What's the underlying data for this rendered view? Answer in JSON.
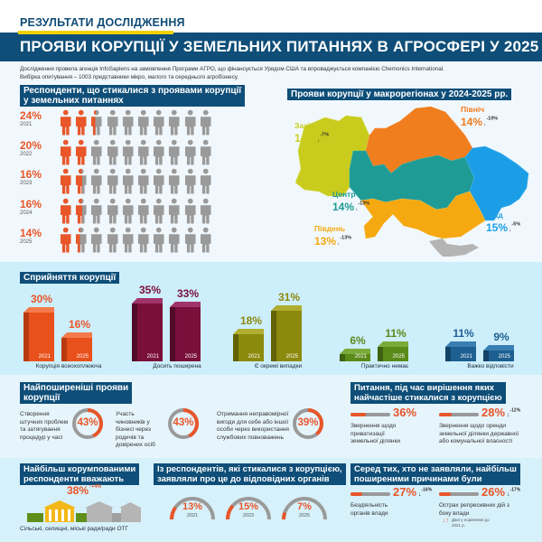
{
  "header": {
    "kicker": "РЕЗУЛЬТАТИ ДОСЛІДЖЕННЯ",
    "title": "ПРОЯВИ КОРУПЦІЇ У ЗЕМЕЛЬНИХ ПИТАННЯХ В АГРОСФЕРІ У 2025 Р.",
    "intro_line1": "Дослідження провела агенція InfoSapiens на замовлення Програми АГРО, що фінансується Урядом США та впроваджується компанією Chemonics International.",
    "intro_line2": "Вибірка опитування – 1003 представники мікро, малого та середнього агробізнесу."
  },
  "colors": {
    "brand_navy": "#0e4e78",
    "accent_yellow": "#f3d100",
    "orange": "#e8562a",
    "maroon": "#7a0f3c",
    "olive": "#8c8a0c",
    "green": "#5a8a1a",
    "blue": "#1d5f91",
    "grey": "#9a9a9a"
  },
  "respondents": {
    "title_line1": "Респонденти, що стикалися з проявами корупції",
    "title_line2": "у земельних питаннях",
    "rows": [
      {
        "pct": "24%",
        "year": "2021"
      },
      {
        "pct": "20%",
        "year": "2022"
      },
      {
        "pct": "16%",
        "year": "2023"
      },
      {
        "pct": "16%",
        "year": "2024"
      },
      {
        "pct": "14%",
        "year": "2025"
      }
    ]
  },
  "regions": {
    "title": "Прояви корупції у макрорегіонах у 2024-2025 рр.",
    "items": [
      {
        "name": "Захід",
        "pct": "14%",
        "change": "-7%",
        "color": "#c9cc1c"
      },
      {
        "name": "Північ",
        "pct": "14%",
        "change": "-10%",
        "color": "#f07d1e"
      },
      {
        "name": "Центр",
        "pct": "14%",
        "change": "-13%",
        "color": "#1f9b95"
      },
      {
        "name": "Південь",
        "pct": "13%",
        "change": "-13%",
        "color": "#f5a80f"
      },
      {
        "name": "Схід",
        "pct": "15%",
        "change": "-5%",
        "color": "#1c9ee6"
      }
    ]
  },
  "perception": {
    "title": "Сприйняття корупції",
    "groups": [
      {
        "label": "Корупція всеохоплююча",
        "v2021": "30%",
        "v2025": "16%"
      },
      {
        "label": "Досить поширена",
        "v2021": "35%",
        "v2025": "33%"
      },
      {
        "label": "Є окремі випадки",
        "v2021": "18%",
        "v2025": "31%"
      },
      {
        "label": "Практично немає",
        "v2021": "6%",
        "v2025": "11%"
      },
      {
        "label": "Важко відповісти",
        "v2021": "11%",
        "v2025": "9%"
      }
    ],
    "year_a": "2021",
    "year_b": "2025"
  },
  "common": {
    "title_line1": "Найпоширеніші прояви",
    "title_line2": "корупції",
    "items": [
      {
        "text": "Створення штучних проблем та затягування процедур у часі",
        "pct": "43%"
      },
      {
        "text": "Участь чиновників у бізнесі через родичів та довірених осіб",
        "pct": "43%"
      },
      {
        "text": "Отримання неправомірної вигоди для себе або іншої особи через використання службових повноважень",
        "pct": "39%"
      }
    ]
  },
  "issues": {
    "title_line1": "Питання, під час вирішення яких",
    "title_line2": "найчастіше стикалися з корупцією",
    "items": [
      {
        "pct": "36%",
        "change": "",
        "text": "Звернення щодо приватизації земельної ділянки"
      },
      {
        "pct": "28%",
        "change": "-12%",
        "text": "Звернення щодо оренди земельної ділянки державної або комунальної власності"
      }
    ]
  },
  "most_corrupt": {
    "title_line1": "Найбільш корумпованими",
    "title_line2": "респонденти вважають",
    "pct": "38%",
    "change": "+4%",
    "label": "Сільські, селищні, міські ради/ради ОТГ"
  },
  "reported": {
    "title_line1": "Із респондентів, які стикалися з корупцією,",
    "title_line2": "заявляли про це до відповідних органів",
    "items": [
      {
        "pct": "13%",
        "year": "2021"
      },
      {
        "pct": "15%",
        "year": "2023"
      },
      {
        "pct": "7%",
        "year": "2025"
      }
    ]
  },
  "not_reported": {
    "title_line1": "Серед тих, хто не заявляли, найбільш",
    "title_line2": "поширеними причинами були",
    "items": [
      {
        "pct": "27%",
        "change": "-16%",
        "text": "Бездіяльність органів влади"
      },
      {
        "pct": "26%",
        "change": "-17%",
        "text": "Острах репресивних дій з боку влади"
      }
    ],
    "legend": "Дані у порівнянні до 2021 р."
  },
  "chart_data": [
    {
      "type": "pictogram",
      "title": "Респонденти, що стикалися з проявами корупції у земельних питаннях",
      "categories": [
        "2021",
        "2022",
        "2023",
        "2024",
        "2025"
      ],
      "values": [
        24,
        20,
        16,
        16,
        14
      ],
      "unit": "%"
    },
    {
      "type": "map",
      "title": "Прояви корупції у макрорегіонах у 2024-2025 рр.",
      "categories": [
        "Захід",
        "Північ",
        "Центр",
        "Південь",
        "Схід"
      ],
      "values": [
        14,
        14,
        14,
        13,
        15
      ],
      "change_vs_2021": [
        -7,
        -10,
        -13,
        -13,
        -5
      ],
      "unit": "%"
    },
    {
      "type": "bar",
      "title": "Сприйняття корупції",
      "categories": [
        "Корупція всеохоплююча",
        "Досить поширена",
        "Є окремі випадки",
        "Практично немає",
        "Важко відповісти"
      ],
      "series": [
        {
          "name": "2021",
          "values": [
            30,
            35,
            18,
            6,
            11
          ]
        },
        {
          "name": "2025",
          "values": [
            16,
            33,
            31,
            11,
            9
          ]
        }
      ],
      "unit": "%"
    },
    {
      "type": "pie",
      "title": "Найпоширеніші прояви корупції",
      "categories": [
        "Створення штучних проблем та затягування процедур у часі",
        "Участь чиновників у бізнесі через родичів та довірених осіб",
        "Отримання неправомірної вигоди для себе або іншої особи через використання службових повноважень"
      ],
      "values": [
        43,
        43,
        39
      ],
      "unit": "%"
    },
    {
      "type": "bar",
      "title": "Питання, під час вирішення яких найчастіше стикалися з корупцією",
      "categories": [
        "Звернення щодо приватизації земельної ділянки",
        "Звернення щодо оренди земельної ділянки державної або комунальної власності"
      ],
      "values": [
        36,
        28
      ],
      "change_vs_2021": [
        null,
        -12
      ],
      "unit": "%"
    },
    {
      "type": "pie",
      "title": "Із респондентів, які стикалися з корупцією, заявляли про це до відповідних органів",
      "categories": [
        "2021",
        "2023",
        "2025"
      ],
      "values": [
        13,
        15,
        7
      ],
      "unit": "%"
    },
    {
      "type": "bar",
      "title": "Серед тих, хто не заявляли, найбільш поширеними причинами були",
      "categories": [
        "Бездіяльність органів влади",
        "Острах репресивних дій з боку влади"
      ],
      "values": [
        27,
        26
      ],
      "change_vs_2021": [
        -16,
        -17
      ],
      "unit": "%"
    }
  ]
}
